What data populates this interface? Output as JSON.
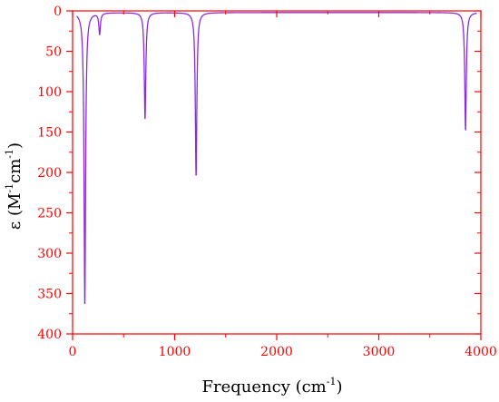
{
  "chart_data": {
    "type": "line",
    "title": "",
    "xlabel": {
      "main": "Frequency (cm",
      "sup": "-1",
      "tail": ")"
    },
    "ylabel": {
      "prefix": "ε (M",
      "sup1": "-1",
      "mid": "cm",
      "sup2": "-1",
      "tail": ")"
    },
    "xlim": [
      0,
      4000
    ],
    "ylim": [
      0,
      400
    ],
    "y_inverted": true,
    "x_ticks": [
      "0",
      "1000",
      "2000",
      "3000",
      "4000"
    ],
    "y_ticks": [
      "0",
      "50",
      "100",
      "150",
      "200",
      "250",
      "300",
      "350",
      "400"
    ],
    "grid": false,
    "legend": "none",
    "series": [
      {
        "peaks": [
          {
            "x": 120,
            "y": 362
          },
          {
            "x": 265,
            "y": 28
          },
          {
            "x": 710,
            "y": 133
          },
          {
            "x": 1210,
            "y": 203
          },
          {
            "x": 3850,
            "y": 147
          }
        ],
        "baseline": 2
      }
    ],
    "colors": {
      "axis": "#ff0000",
      "series": "#8a2be2",
      "tick_labels": "#ff0000",
      "axis_titles": "#000000"
    }
  }
}
